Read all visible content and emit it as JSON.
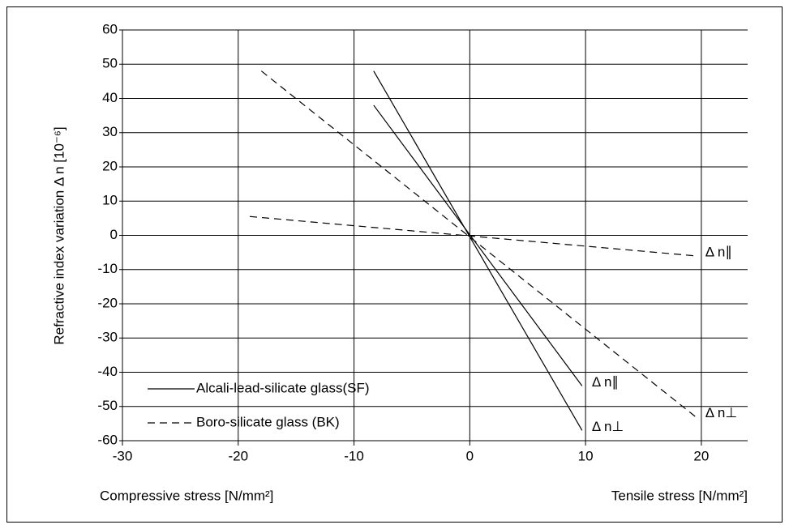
{
  "chart_data": {
    "type": "line",
    "y_label": "Refractive index variation  Δ n [10⁻⁶]",
    "x_label_left": "Compressive stress [N/mm²]",
    "x_label_right": "Tensile stress [N/mm²]",
    "xlim": [
      -30,
      24
    ],
    "ylim": [
      -60,
      60
    ],
    "xticks": [
      -30,
      -20,
      -10,
      0,
      10,
      20
    ],
    "yticks": [
      -60,
      -50,
      -40,
      -30,
      -20,
      -10,
      0,
      10,
      20,
      30,
      40,
      50,
      60
    ],
    "grid": true,
    "legend": "lower left",
    "series": [
      {
        "name": "Alcali-lead-silicate glass(SF)",
        "color": "#000000",
        "dash": "solid",
        "curves": [
          {
            "label": "Δ n∥",
            "x": [
              -8.3,
              9.7
            ],
            "values": [
              38,
              -44
            ]
          },
          {
            "label": "Δ n⊥",
            "x": [
              -8.3,
              9.7
            ],
            "values": [
              48,
              -57
            ]
          }
        ]
      },
      {
        "name": "Boro-silicate glass (BK)",
        "color": "#000000",
        "dash": "dashed",
        "curves": [
          {
            "label": "Δ n∥",
            "x": [
              -19,
              19.5
            ],
            "values": [
              5.5,
              -6
            ]
          },
          {
            "label": "Δ n⊥",
            "x": [
              -18,
              19.5
            ],
            "values": [
              48,
              -53
            ]
          }
        ]
      }
    ]
  }
}
